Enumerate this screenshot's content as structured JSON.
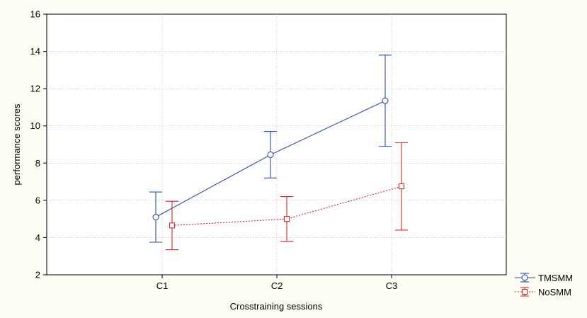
{
  "chart_data": {
    "type": "line",
    "xlabel": "Crosstraining sessions",
    "ylabel": "performance scores",
    "categories": [
      "C1",
      "C2",
      "C3"
    ],
    "ylim": [
      2,
      16
    ],
    "yticks": [
      2,
      4,
      6,
      8,
      10,
      12,
      14,
      16
    ],
    "grid": true,
    "legend_position": "bottom-right",
    "series": [
      {
        "name": "TMSMM",
        "color": "#2a4fa0",
        "line_style": "solid",
        "marker": "circle",
        "values": [
          5.1,
          8.45,
          11.35
        ],
        "error_low": [
          3.75,
          7.2,
          8.9
        ],
        "error_high": [
          6.45,
          9.7,
          13.8
        ]
      },
      {
        "name": "NoSMM",
        "color": "#d62728",
        "line_style": "dotted",
        "marker": "square",
        "values": [
          4.65,
          5.0,
          6.75
        ],
        "error_low": [
          3.35,
          3.8,
          4.4
        ],
        "error_high": [
          5.95,
          6.2,
          9.1
        ]
      }
    ]
  }
}
